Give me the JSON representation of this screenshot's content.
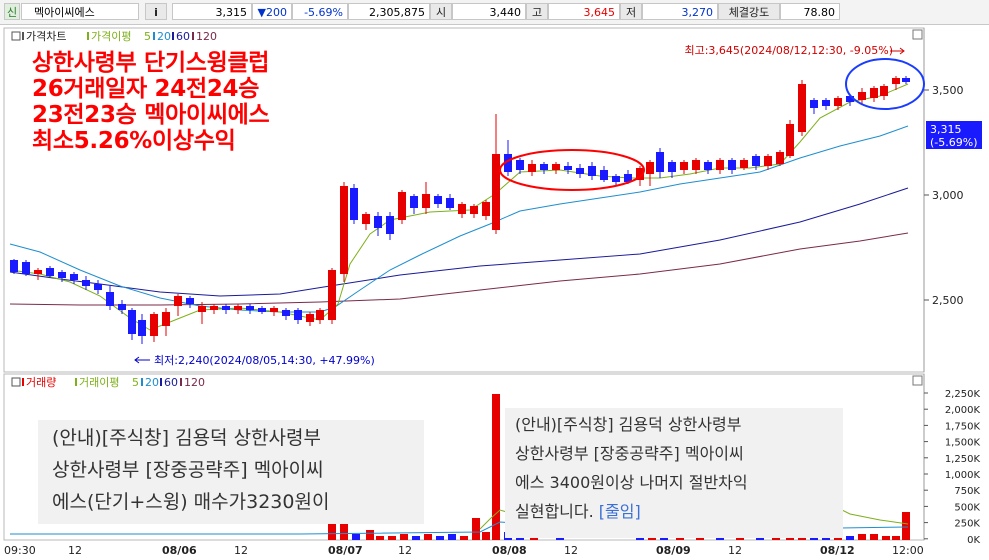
{
  "topbar": {
    "market_icon": "신",
    "stock_name": "멕아이씨에스",
    "info_button": "i",
    "price": "3,315",
    "change": "▼200",
    "change_pct": "-5.69%",
    "volume": "2,305,875",
    "open_label": "시",
    "open_value": "3,440",
    "high_label": "고",
    "high_value": "3,645",
    "low_label": "저",
    "low_value": "3,270",
    "strength_label": "체결강도",
    "strength_value": "78.80"
  },
  "price_panel": {
    "title": "가격차트",
    "ma_label": "가격이평",
    "ma_periods": [
      "5",
      "20",
      "60",
      "120"
    ],
    "colors": {
      "up": "#e60000",
      "down": "#1a1aff",
      "ma5": "#7db01a",
      "ma20": "#1e8ed0",
      "ma60": "#1a1a9a",
      "ma120": "#7a2a4a"
    },
    "y_ticks": [
      "3,500",
      "3,000",
      "2,500"
    ],
    "current_price_tag": "3,315",
    "current_pct_tag": "(-5.69%)",
    "high_annotation": "최고:3,645(2024/08/12,12:30, -9.05%)",
    "low_annotation": "최저:2,240(2024/08/05,14:30, +47.99%)"
  },
  "volume_panel": {
    "title": "거래량",
    "ma_label": "거래이평",
    "ma_periods": [
      "5",
      "20",
      "60",
      "120"
    ],
    "y_ticks": [
      "2,250K",
      "2,000K",
      "1,750K",
      "1,500K",
      "1,250K",
      "1,000K",
      "750K",
      "500K",
      "250K",
      "0K"
    ]
  },
  "x_axis_labels": [
    "09:30",
    "12",
    "08/06",
    "12",
    "08/07",
    "12",
    "08/08",
    "12",
    "08/09",
    "12",
    "08/12",
    "12:00"
  ],
  "promo": {
    "line1": "상한사령부 단기스윙클럽",
    "line2": "26거래일자 24전24승",
    "line3": "23전23승 멕아이씨에스",
    "line4": "최소5.26%이상수익"
  },
  "notice_left": {
    "line1": "(안내)[주식창] 김용덕 상한사령부",
    "line2": "상한사령부 [장중공략주] 멕아이씨",
    "line3": "에스(단기+스윙) 매수가3230원이"
  },
  "notice_right": {
    "line1": "(안내)[주식창] 김용덕 상한사령부",
    "line2": "상한사령부 [장중공략주] 멕아이씨",
    "line3": "에스 3400원이상 나머지 절반차익",
    "line4": "실현합니다.",
    "link": "[줄임]"
  }
}
